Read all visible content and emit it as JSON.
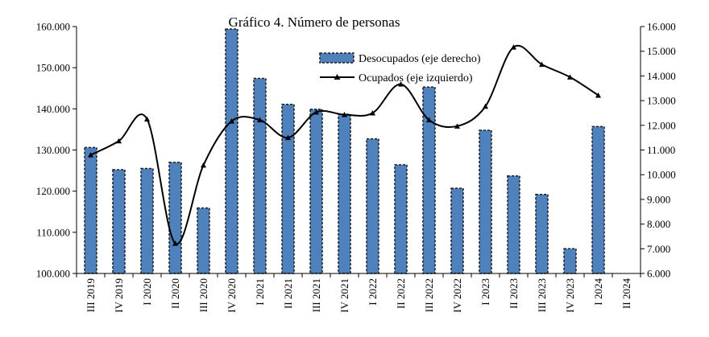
{
  "chart_data": {
    "type": "bar",
    "title": "Gráfico  4. Número de personas",
    "categories": [
      "III 2019",
      "IV 2019",
      "I 2020",
      "II 2020",
      "III 2020",
      "IV 2020",
      "I 2021",
      "II 2021",
      "III 2021",
      "IV 2021",
      "I 2022",
      "II 2022",
      "III 2022",
      "IV 2022",
      "I 2023",
      "II 2023",
      "III 2023",
      "IV 2023",
      "I 2024",
      "II 2024"
    ],
    "series": [
      {
        "name": "Desocupados (eje derecho)",
        "type": "bar",
        "axis": "right",
        "color": "#4f81bd",
        "values": [
          11100,
          10200,
          10250,
          10500,
          8650,
          15900,
          13900,
          12850,
          12650,
          12450,
          11450,
          10400,
          13550,
          9450,
          11800,
          9950,
          9200,
          7000,
          11950,
          null
        ]
      },
      {
        "name": "Ocupados (eje izquierdo)",
        "type": "line",
        "axis": "left",
        "color": "#000000",
        "values": [
          128800,
          132200,
          137500,
          107300,
          126300,
          137000,
          137300,
          133000,
          139200,
          138600,
          139000,
          146000,
          137300,
          135800,
          140600,
          155000,
          150800,
          147700,
          143300,
          null
        ]
      }
    ],
    "y_left": {
      "ylim": [
        100000,
        160000
      ],
      "ticks": [
        100000,
        110000,
        120000,
        130000,
        140000,
        150000,
        160000
      ],
      "tick_labels": [
        "100.000",
        "110.000",
        "120.000",
        "130.000",
        "140.000",
        "150.000",
        "160.000"
      ]
    },
    "y_right": {
      "ylim": [
        6000,
        16000
      ],
      "ticks": [
        6000,
        7000,
        8000,
        9000,
        10000,
        11000,
        12000,
        13000,
        14000,
        15000,
        16000
      ],
      "tick_labels": [
        "6.000",
        "7.000",
        "8.000",
        "9.000",
        "10.000",
        "11.000",
        "12.000",
        "13.000",
        "14.000",
        "15.000",
        "16.000"
      ]
    },
    "legend": "top-right",
    "grid": false
  }
}
